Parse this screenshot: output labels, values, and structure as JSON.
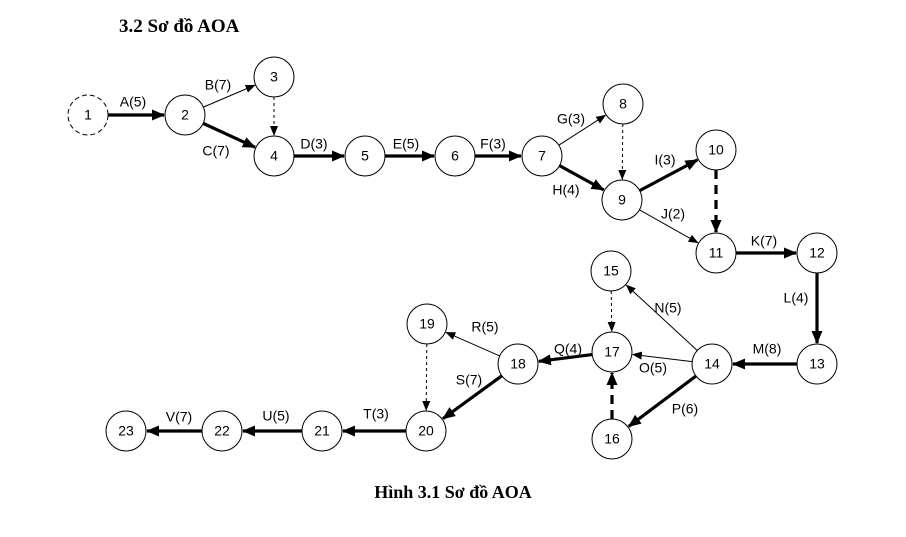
{
  "heading": "3.2 Sơ đồ AOA",
  "caption": "Hình 3.1 Sơ đồ AOA",
  "nodes": [
    "1",
    "2",
    "3",
    "4",
    "5",
    "6",
    "7",
    "8",
    "9",
    "10",
    "11",
    "12",
    "13",
    "14",
    "15",
    "16",
    "17",
    "18",
    "19",
    "20",
    "21",
    "22",
    "23"
  ],
  "edges": [
    {
      "from": "1",
      "to": "2",
      "label": "A(5)",
      "style": "critical"
    },
    {
      "from": "2",
      "to": "3",
      "label": "B(7)",
      "style": "normal"
    },
    {
      "from": "2",
      "to": "4",
      "label": "C(7)",
      "style": "critical"
    },
    {
      "from": "3",
      "to": "4",
      "label": "",
      "style": "dummy"
    },
    {
      "from": "4",
      "to": "5",
      "label": "D(3)",
      "style": "critical"
    },
    {
      "from": "5",
      "to": "6",
      "label": "E(5)",
      "style": "critical"
    },
    {
      "from": "6",
      "to": "7",
      "label": "F(3)",
      "style": "critical"
    },
    {
      "from": "7",
      "to": "8",
      "label": "G(3)",
      "style": "normal"
    },
    {
      "from": "7",
      "to": "9",
      "label": "H(4)",
      "style": "critical"
    },
    {
      "from": "8",
      "to": "9",
      "label": "",
      "style": "dummy"
    },
    {
      "from": "9",
      "to": "10",
      "label": "I(3)",
      "style": "critical"
    },
    {
      "from": "9",
      "to": "11",
      "label": "J(2)",
      "style": "normal"
    },
    {
      "from": "10",
      "to": "11",
      "label": "",
      "style": "critical-dummy"
    },
    {
      "from": "11",
      "to": "12",
      "label": "K(7)",
      "style": "critical"
    },
    {
      "from": "12",
      "to": "13",
      "label": "L(4)",
      "style": "critical"
    },
    {
      "from": "13",
      "to": "14",
      "label": "M(8)",
      "style": "critical"
    },
    {
      "from": "14",
      "to": "15",
      "label": "N(5)",
      "style": "normal"
    },
    {
      "from": "14",
      "to": "17",
      "label": "O(5)",
      "style": "normal"
    },
    {
      "from": "14",
      "to": "16",
      "label": "P(6)",
      "style": "critical"
    },
    {
      "from": "15",
      "to": "17",
      "label": "",
      "style": "dummy"
    },
    {
      "from": "16",
      "to": "17",
      "label": "",
      "style": "critical-dummy"
    },
    {
      "from": "17",
      "to": "18",
      "label": "Q(4)",
      "style": "critical"
    },
    {
      "from": "18",
      "to": "19",
      "label": "R(5)",
      "style": "normal"
    },
    {
      "from": "18",
      "to": "20",
      "label": "S(7)",
      "style": "critical"
    },
    {
      "from": "19",
      "to": "20",
      "label": "",
      "style": "dummy"
    },
    {
      "from": "20",
      "to": "21",
      "label": "T(3)",
      "style": "critical"
    },
    {
      "from": "21",
      "to": "22",
      "label": "U(5)",
      "style": "critical"
    },
    {
      "from": "22",
      "to": "23",
      "label": "V(7)",
      "style": "critical"
    }
  ]
}
